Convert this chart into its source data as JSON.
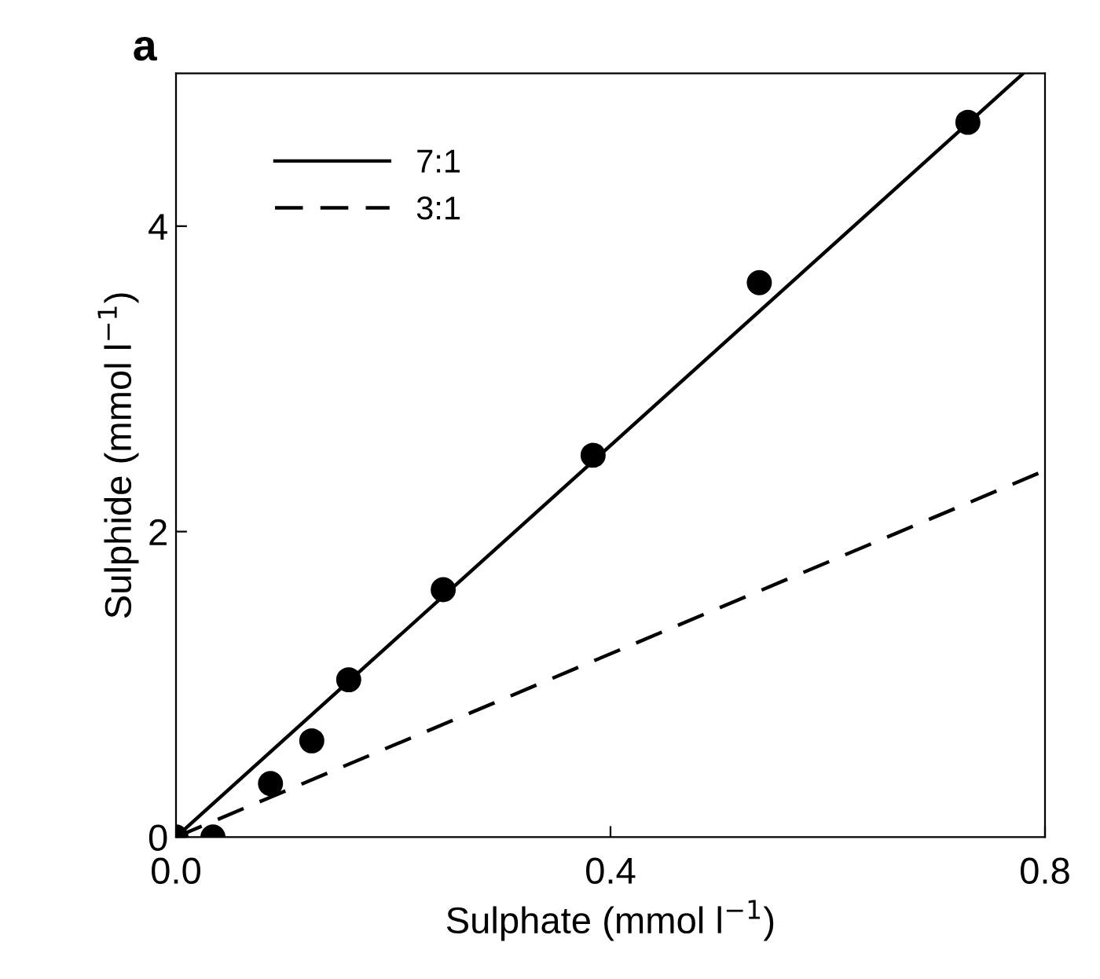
{
  "chart_data": {
    "type": "scatter",
    "title": "a",
    "xlabel": "Sulphate (mmol l$^{−1}$)",
    "ylabel": "Sulphide (mmol l$^{−1}$)",
    "xlim": [
      0,
      0.8
    ],
    "ylim": [
      0,
      5
    ],
    "xticks": [
      {
        "value": 0,
        "label": "0.0"
      },
      0.4,
      0.8
    ],
    "yticks": [
      0,
      2,
      4
    ],
    "grid": false,
    "legend": "top left",
    "marker": "circle",
    "series": [
      {
        "color": "#000000",
        "x": [
          0,
          0.034,
          0.087,
          0.125,
          0.159,
          0.246,
          0.384,
          0.537,
          0.729
        ],
        "values": [
          0,
          0,
          0.35,
          0.63,
          1.03,
          1.62,
          2.5,
          3.63,
          4.68
        ]
      },
      {
        "type": "line",
        "name": "7:1",
        "color": "#000000",
        "line_style": "solid",
        "marker": "none",
        "x": [
          0,
          0.78
        ],
        "values": [
          0,
          5
        ]
      },
      {
        "type": "line",
        "name": "3:1",
        "color": "#000000",
        "line_style": "dashed",
        "marker": "none",
        "x": [
          0,
          0.8
        ],
        "values": [
          0,
          2.4
        ]
      }
    ]
  }
}
